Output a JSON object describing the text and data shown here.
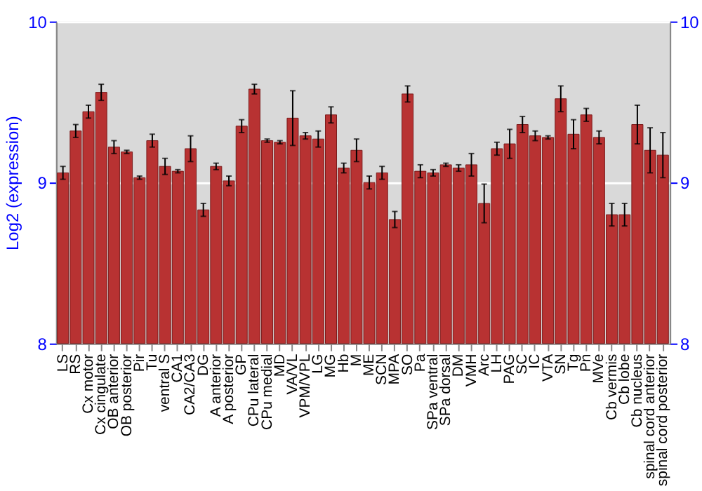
{
  "chart_data": {
    "type": "bar",
    "ylabel": "Log2 (expression)",
    "categories": [
      "LS",
      "RS",
      "Cx motor",
      "Cx cingulate",
      "OB anterior",
      "OB posterior",
      "Pir",
      "Tu",
      "ventral S",
      "CA1",
      "CA2/CA3",
      "DG",
      "A anterior",
      "A posterior",
      "GP",
      "CPu lateral",
      "CPu medial",
      "MD",
      "VA/VL",
      "VPM/VPL",
      "LG",
      "MG",
      "Hb",
      "M",
      "ME",
      "SCN",
      "MPA",
      "SO",
      "Pa",
      "SPa ventral",
      "SPa dorsal",
      "DM",
      "VMH",
      "Arc",
      "LH",
      "PAG",
      "SC",
      "IC",
      "VTA",
      "SN",
      "Tg",
      "Pn",
      "MVe",
      "Cb vermis",
      "Cb lobe",
      "Cb nucleus",
      "spinal cord anterior",
      "spinal cord posterior"
    ],
    "values": [
      9.06,
      9.32,
      9.44,
      9.56,
      9.22,
      9.19,
      9.03,
      9.26,
      9.1,
      9.07,
      9.21,
      8.83,
      9.1,
      9.01,
      9.35,
      9.58,
      9.26,
      9.25,
      9.4,
      9.29,
      9.27,
      9.42,
      9.09,
      9.2,
      9.0,
      9.06,
      8.77,
      9.55,
      9.07,
      9.06,
      9.11,
      9.09,
      9.11,
      8.87,
      9.21,
      9.24,
      9.36,
      9.29,
      9.28,
      9.52,
      9.3,
      9.42,
      9.28,
      8.8,
      8.8,
      9.36,
      9.2,
      9.17
    ],
    "errors": [
      0.04,
      0.04,
      0.04,
      0.05,
      0.04,
      0.01,
      0.01,
      0.04,
      0.05,
      0.01,
      0.08,
      0.04,
      0.02,
      0.03,
      0.04,
      0.03,
      0.01,
      0.01,
      0.17,
      0.02,
      0.05,
      0.05,
      0.03,
      0.07,
      0.04,
      0.04,
      0.05,
      0.05,
      0.04,
      0.02,
      0.01,
      0.02,
      0.07,
      0.12,
      0.04,
      0.09,
      0.05,
      0.03,
      0.01,
      0.08,
      0.09,
      0.04,
      0.04,
      0.07,
      0.07,
      0.12,
      0.14,
      0.14
    ],
    "color": "#b83232",
    "ylim": [
      8,
      10
    ],
    "yticks": [
      8,
      9,
      10
    ],
    "y2lim": [
      8,
      10
    ],
    "y2ticks": [
      8,
      9,
      10
    ],
    "grid": "y"
  }
}
